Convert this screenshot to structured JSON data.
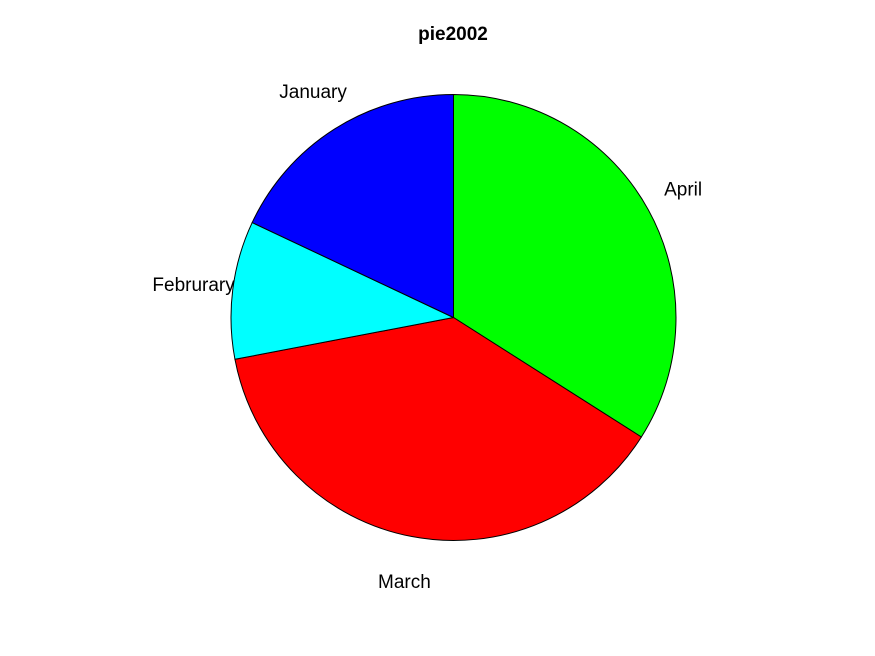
{
  "chart_data": {
    "type": "pie",
    "title": "pie2002",
    "direction": "clockwise",
    "start": "top",
    "slices": [
      {
        "label": "April",
        "value": 34,
        "color": "#00ff00"
      },
      {
        "label": "March",
        "value": 38,
        "color": "#ff0000"
      },
      {
        "label": "Februrary",
        "value": 10,
        "color": "#00ffff"
      },
      {
        "label": "January",
        "value": 18,
        "color": "#0000ff"
      }
    ]
  }
}
